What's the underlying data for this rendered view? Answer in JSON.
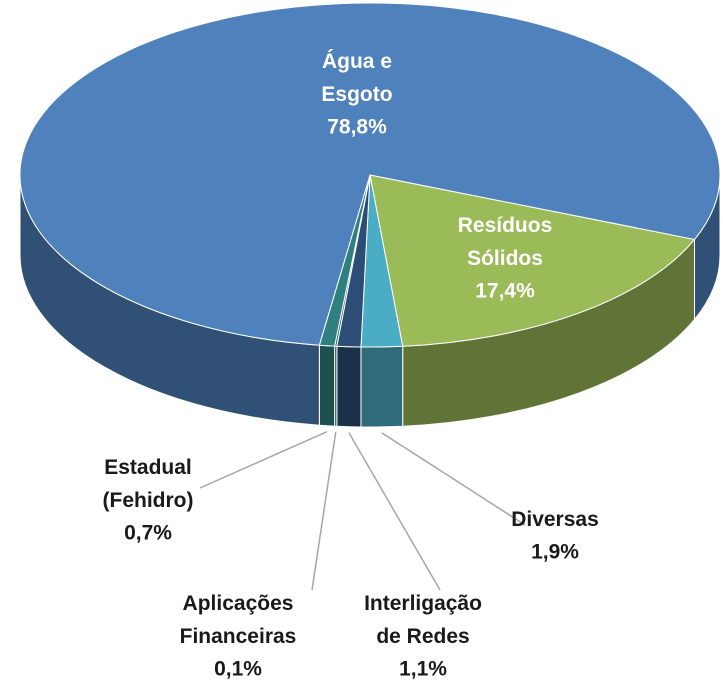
{
  "chart_data": {
    "type": "pie3d",
    "categories": [
      "Resíduos Sólidos",
      "Diversas",
      "Interligação de Redes",
      "Aplicações Financeiras",
      "Estadual (Fehidro)",
      "Água e Esgoto"
    ],
    "values": [
      17.4,
      1.9,
      1.1,
      0.1,
      0.7,
      78.8
    ],
    "value_labels": [
      "17,4%",
      "1,9%",
      "1,1%",
      "0,1%",
      "0,7%",
      "78,8%"
    ],
    "colors": [
      "#9bbb59",
      "#4bacc6",
      "#2c4d75",
      "#1f6b73",
      "#2f7f80",
      "#4f81bd"
    ]
  }
}
